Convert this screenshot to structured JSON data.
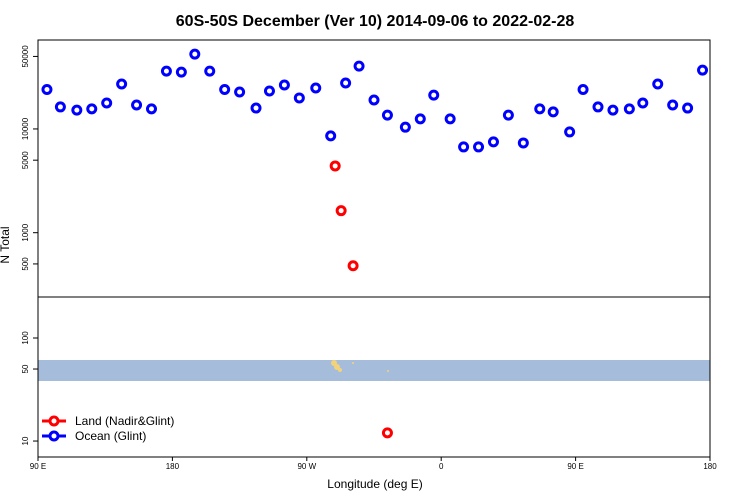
{
  "chart_data": [
    {
      "type": "scatter",
      "title": "60S-50S December (Ver 10)   2014-09-06 to 2022-02-28",
      "ylabel": "N Total",
      "log_y": true,
      "xlim": [
        90,
        540
      ],
      "ylim": [
        240,
        72000
      ],
      "yticks": [
        500,
        1000,
        5000,
        10000,
        50000
      ],
      "legend": "lower left",
      "series": [
        {
          "name": "Land (Nadir&Glint)",
          "color": "#ff0000",
          "x": [
            289,
            293,
            301
          ],
          "values": [
            4400,
            1630,
            480
          ]
        },
        {
          "name": "Ocean (Glint)",
          "color": "#0000ff",
          "x": [
            96,
            105,
            116,
            126,
            136,
            146,
            156,
            166,
            176,
            186,
            195,
            205,
            215,
            225,
            236,
            245,
            255,
            265,
            276,
            286,
            296,
            305,
            315,
            324,
            336,
            346,
            355,
            366,
            375,
            385,
            395,
            405,
            415,
            426,
            435,
            446,
            455,
            465,
            475,
            486,
            495,
            505,
            515,
            525,
            535
          ],
          "values": [
            24000,
            16300,
            15200,
            15600,
            17800,
            27100,
            17000,
            15600,
            36100,
            35300,
            52600,
            36100,
            24000,
            22700,
            15900,
            23200,
            26500,
            19900,
            24800,
            8570,
            27700,
            40300,
            19000,
            13600,
            10400,
            12500,
            21200,
            12500,
            6710,
            6710,
            7500,
            13600,
            7330,
            15600,
            14600,
            9360,
            24000,
            16300,
            15200,
            15600,
            17800,
            27100,
            17000,
            15900,
            36900
          ]
        }
      ]
    },
    {
      "type": "scatter",
      "xlabel": "Longitude (deg E)",
      "log_y": true,
      "xlim": [
        90,
        540
      ],
      "ylim": [
        7,
        250
      ],
      "yticks": [
        10,
        50,
        100
      ],
      "xticks": [
        {
          "value": 90,
          "label": "90 E"
        },
        180,
        {
          "value": 270,
          "label": "90 W"
        },
        {
          "value": 360,
          "label": "0"
        },
        {
          "value": 450,
          "label": "90 E"
        },
        {
          "value": 540,
          "label": "180"
        }
      ],
      "series": [
        {
          "color": "#ff0000",
          "x": [
            324
          ],
          "values": [
            12
          ]
        }
      ]
    }
  ]
}
